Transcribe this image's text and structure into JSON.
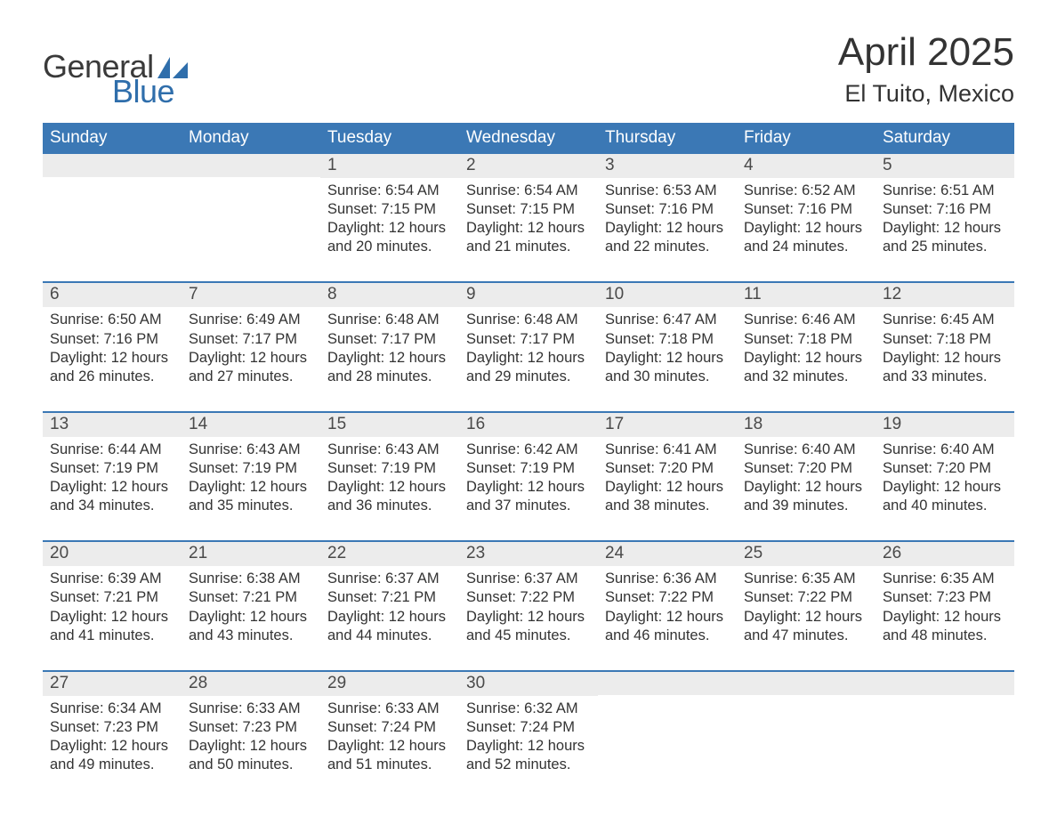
{
  "logo": {
    "word1": "General",
    "word2": "Blue",
    "word1_color": "#3a3a3a",
    "word2_color": "#2f6eab",
    "sail_color": "#2f6eab"
  },
  "title": {
    "month": "April 2025",
    "location": "El Tuito, Mexico"
  },
  "colors": {
    "header_bg": "#3b78b5",
    "header_text": "#ffffff",
    "daynum_bg": "#ececec",
    "daynum_text": "#4a4a4a",
    "body_text": "#333333",
    "week_border": "#3b78b5",
    "page_bg": "#ffffff"
  },
  "weekdays": [
    "Sunday",
    "Monday",
    "Tuesday",
    "Wednesday",
    "Thursday",
    "Friday",
    "Saturday"
  ],
  "weeks": [
    [
      {
        "num": "",
        "sunrise": "",
        "sunset": "",
        "daylight1": "",
        "daylight2": ""
      },
      {
        "num": "",
        "sunrise": "",
        "sunset": "",
        "daylight1": "",
        "daylight2": ""
      },
      {
        "num": "1",
        "sunrise": "Sunrise: 6:54 AM",
        "sunset": "Sunset: 7:15 PM",
        "daylight1": "Daylight: 12 hours",
        "daylight2": "and 20 minutes."
      },
      {
        "num": "2",
        "sunrise": "Sunrise: 6:54 AM",
        "sunset": "Sunset: 7:15 PM",
        "daylight1": "Daylight: 12 hours",
        "daylight2": "and 21 minutes."
      },
      {
        "num": "3",
        "sunrise": "Sunrise: 6:53 AM",
        "sunset": "Sunset: 7:16 PM",
        "daylight1": "Daylight: 12 hours",
        "daylight2": "and 22 minutes."
      },
      {
        "num": "4",
        "sunrise": "Sunrise: 6:52 AM",
        "sunset": "Sunset: 7:16 PM",
        "daylight1": "Daylight: 12 hours",
        "daylight2": "and 24 minutes."
      },
      {
        "num": "5",
        "sunrise": "Sunrise: 6:51 AM",
        "sunset": "Sunset: 7:16 PM",
        "daylight1": "Daylight: 12 hours",
        "daylight2": "and 25 minutes."
      }
    ],
    [
      {
        "num": "6",
        "sunrise": "Sunrise: 6:50 AM",
        "sunset": "Sunset: 7:16 PM",
        "daylight1": "Daylight: 12 hours",
        "daylight2": "and 26 minutes."
      },
      {
        "num": "7",
        "sunrise": "Sunrise: 6:49 AM",
        "sunset": "Sunset: 7:17 PM",
        "daylight1": "Daylight: 12 hours",
        "daylight2": "and 27 minutes."
      },
      {
        "num": "8",
        "sunrise": "Sunrise: 6:48 AM",
        "sunset": "Sunset: 7:17 PM",
        "daylight1": "Daylight: 12 hours",
        "daylight2": "and 28 minutes."
      },
      {
        "num": "9",
        "sunrise": "Sunrise: 6:48 AM",
        "sunset": "Sunset: 7:17 PM",
        "daylight1": "Daylight: 12 hours",
        "daylight2": "and 29 minutes."
      },
      {
        "num": "10",
        "sunrise": "Sunrise: 6:47 AM",
        "sunset": "Sunset: 7:18 PM",
        "daylight1": "Daylight: 12 hours",
        "daylight2": "and 30 minutes."
      },
      {
        "num": "11",
        "sunrise": "Sunrise: 6:46 AM",
        "sunset": "Sunset: 7:18 PM",
        "daylight1": "Daylight: 12 hours",
        "daylight2": "and 32 minutes."
      },
      {
        "num": "12",
        "sunrise": "Sunrise: 6:45 AM",
        "sunset": "Sunset: 7:18 PM",
        "daylight1": "Daylight: 12 hours",
        "daylight2": "and 33 minutes."
      }
    ],
    [
      {
        "num": "13",
        "sunrise": "Sunrise: 6:44 AM",
        "sunset": "Sunset: 7:19 PM",
        "daylight1": "Daylight: 12 hours",
        "daylight2": "and 34 minutes."
      },
      {
        "num": "14",
        "sunrise": "Sunrise: 6:43 AM",
        "sunset": "Sunset: 7:19 PM",
        "daylight1": "Daylight: 12 hours",
        "daylight2": "and 35 minutes."
      },
      {
        "num": "15",
        "sunrise": "Sunrise: 6:43 AM",
        "sunset": "Sunset: 7:19 PM",
        "daylight1": "Daylight: 12 hours",
        "daylight2": "and 36 minutes."
      },
      {
        "num": "16",
        "sunrise": "Sunrise: 6:42 AM",
        "sunset": "Sunset: 7:19 PM",
        "daylight1": "Daylight: 12 hours",
        "daylight2": "and 37 minutes."
      },
      {
        "num": "17",
        "sunrise": "Sunrise: 6:41 AM",
        "sunset": "Sunset: 7:20 PM",
        "daylight1": "Daylight: 12 hours",
        "daylight2": "and 38 minutes."
      },
      {
        "num": "18",
        "sunrise": "Sunrise: 6:40 AM",
        "sunset": "Sunset: 7:20 PM",
        "daylight1": "Daylight: 12 hours",
        "daylight2": "and 39 minutes."
      },
      {
        "num": "19",
        "sunrise": "Sunrise: 6:40 AM",
        "sunset": "Sunset: 7:20 PM",
        "daylight1": "Daylight: 12 hours",
        "daylight2": "and 40 minutes."
      }
    ],
    [
      {
        "num": "20",
        "sunrise": "Sunrise: 6:39 AM",
        "sunset": "Sunset: 7:21 PM",
        "daylight1": "Daylight: 12 hours",
        "daylight2": "and 41 minutes."
      },
      {
        "num": "21",
        "sunrise": "Sunrise: 6:38 AM",
        "sunset": "Sunset: 7:21 PM",
        "daylight1": "Daylight: 12 hours",
        "daylight2": "and 43 minutes."
      },
      {
        "num": "22",
        "sunrise": "Sunrise: 6:37 AM",
        "sunset": "Sunset: 7:21 PM",
        "daylight1": "Daylight: 12 hours",
        "daylight2": "and 44 minutes."
      },
      {
        "num": "23",
        "sunrise": "Sunrise: 6:37 AM",
        "sunset": "Sunset: 7:22 PM",
        "daylight1": "Daylight: 12 hours",
        "daylight2": "and 45 minutes."
      },
      {
        "num": "24",
        "sunrise": "Sunrise: 6:36 AM",
        "sunset": "Sunset: 7:22 PM",
        "daylight1": "Daylight: 12 hours",
        "daylight2": "and 46 minutes."
      },
      {
        "num": "25",
        "sunrise": "Sunrise: 6:35 AM",
        "sunset": "Sunset: 7:22 PM",
        "daylight1": "Daylight: 12 hours",
        "daylight2": "and 47 minutes."
      },
      {
        "num": "26",
        "sunrise": "Sunrise: 6:35 AM",
        "sunset": "Sunset: 7:23 PM",
        "daylight1": "Daylight: 12 hours",
        "daylight2": "and 48 minutes."
      }
    ],
    [
      {
        "num": "27",
        "sunrise": "Sunrise: 6:34 AM",
        "sunset": "Sunset: 7:23 PM",
        "daylight1": "Daylight: 12 hours",
        "daylight2": "and 49 minutes."
      },
      {
        "num": "28",
        "sunrise": "Sunrise: 6:33 AM",
        "sunset": "Sunset: 7:23 PM",
        "daylight1": "Daylight: 12 hours",
        "daylight2": "and 50 minutes."
      },
      {
        "num": "29",
        "sunrise": "Sunrise: 6:33 AM",
        "sunset": "Sunset: 7:24 PM",
        "daylight1": "Daylight: 12 hours",
        "daylight2": "and 51 minutes."
      },
      {
        "num": "30",
        "sunrise": "Sunrise: 6:32 AM",
        "sunset": "Sunset: 7:24 PM",
        "daylight1": "Daylight: 12 hours",
        "daylight2": "and 52 minutes."
      },
      {
        "num": "",
        "sunrise": "",
        "sunset": "",
        "daylight1": "",
        "daylight2": ""
      },
      {
        "num": "",
        "sunrise": "",
        "sunset": "",
        "daylight1": "",
        "daylight2": ""
      },
      {
        "num": "",
        "sunrise": "",
        "sunset": "",
        "daylight1": "",
        "daylight2": ""
      }
    ]
  ]
}
